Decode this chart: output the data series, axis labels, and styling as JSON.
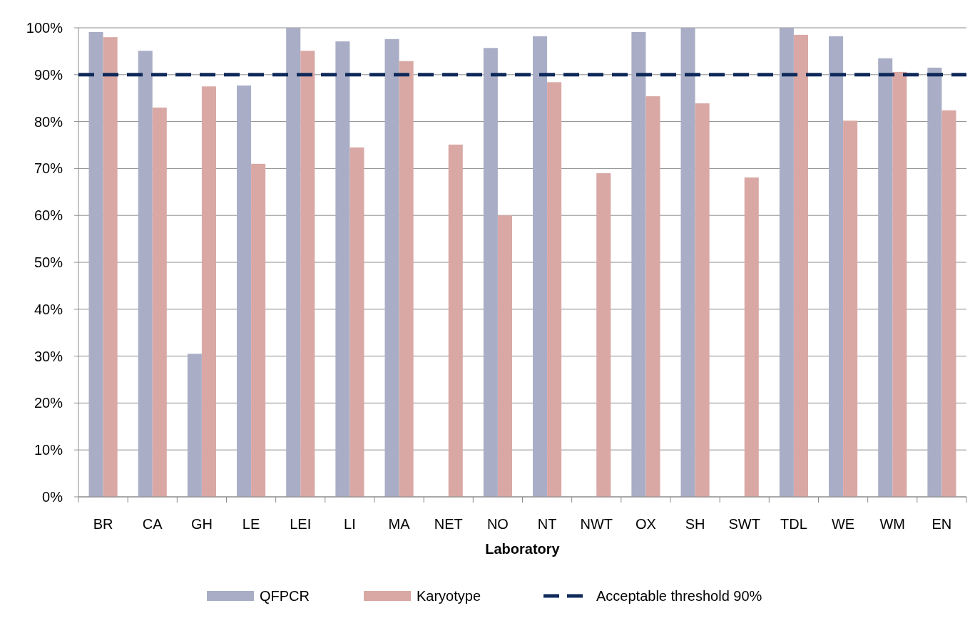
{
  "chart_data": {
    "type": "bar",
    "xlabel": "Laboratory",
    "categories": [
      "BR",
      "CA",
      "GH",
      "LE",
      "LEI",
      "LI",
      "MA",
      "NET",
      "NO",
      "NT",
      "NWT",
      "OX",
      "SH",
      "SWT",
      "TDL",
      "WE",
      "WM",
      "EN"
    ],
    "series": [
      {
        "name": "QFPCR",
        "color": "#a9aec6",
        "values": [
          99.1,
          95.1,
          30.5,
          87.7,
          100,
          97.1,
          97.6,
          null,
          95.7,
          98.2,
          null,
          99.1,
          100,
          null,
          100,
          98.2,
          93.5,
          91.5
        ]
      },
      {
        "name": "Karyotype",
        "color": "#d9a8a5",
        "values": [
          98,
          83,
          87.5,
          71,
          95.1,
          74.5,
          92.9,
          75.1,
          60,
          88.4,
          69,
          85.4,
          83.9,
          68.1,
          98.5,
          80.2,
          90.6,
          82.4
        ]
      }
    ],
    "ylim": [
      0,
      100
    ],
    "yticks": [
      {
        "value": 0,
        "label": "0%"
      },
      {
        "value": 10,
        "label": "10%"
      },
      {
        "value": 20,
        "label": "20%"
      },
      {
        "value": 30,
        "label": "30%"
      },
      {
        "value": 40,
        "label": "40%"
      },
      {
        "value": 50,
        "label": "50%"
      },
      {
        "value": 60,
        "label": "60%"
      },
      {
        "value": 70,
        "label": "70%"
      },
      {
        "value": 80,
        "label": "80%"
      },
      {
        "value": 90,
        "label": "90%"
      },
      {
        "value": 100,
        "label": "100%"
      }
    ],
    "grid": "y",
    "legend": "bottom",
    "ref_lines": [
      {
        "axis": "y",
        "value": 90,
        "label": "Acceptable threshold 90%",
        "color": "#0f2a5a",
        "line_style": "dashed"
      }
    ]
  }
}
